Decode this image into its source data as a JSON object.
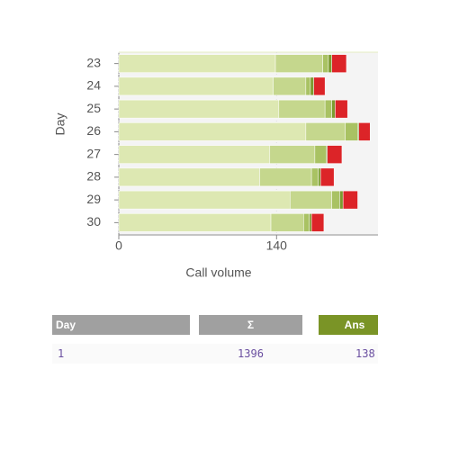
{
  "chart_data": {
    "type": "bar",
    "orientation": "horizontal",
    "stacked": true,
    "x_label": "Call volume",
    "y_label": "Day",
    "categories": [
      "23",
      "24",
      "25",
      "26",
      "27",
      "28",
      "29",
      "30"
    ],
    "series": [
      {
        "color": "#dde8b2",
        "values": [
          139,
          137,
          142,
          166,
          134,
          125,
          152,
          135
        ]
      },
      {
        "color": "#c5d78d",
        "values": [
          42,
          29,
          41,
          35,
          40,
          46,
          37,
          29
        ]
      },
      {
        "color": "#a9c263",
        "values": [
          5,
          4,
          6,
          11,
          10,
          6,
          7,
          5
        ]
      },
      {
        "color": "#7c9b2f",
        "values": [
          3,
          3,
          3,
          1,
          1,
          2,
          3,
          2
        ]
      },
      {
        "color": "#dc2428",
        "values": [
          13,
          10,
          11,
          10,
          13,
          12,
          13,
          11
        ]
      }
    ],
    "xlim": [
      0,
      230
    ],
    "xticks": [
      0,
      140
    ]
  },
  "table": {
    "header": [
      "Day",
      "Σ",
      "Ans"
    ],
    "rows": [
      [
        "1",
        "1396",
        "138"
      ]
    ]
  }
}
